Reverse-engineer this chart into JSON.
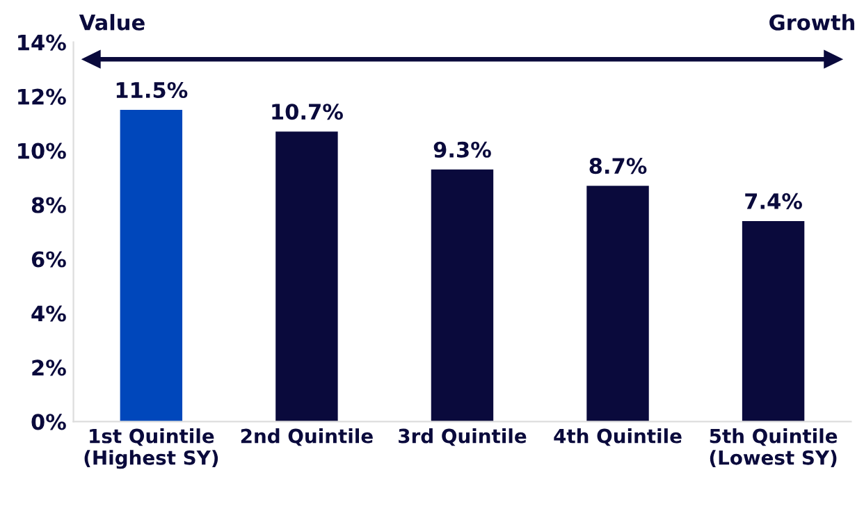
{
  "chart_data": {
    "type": "bar",
    "categories": [
      "1st Quintile\n(Highest SY)",
      "2nd Quintile",
      "3rd Quintile",
      "4th Quintile",
      "5th Quintile\n(Lowest SY)"
    ],
    "values": [
      11.5,
      10.7,
      9.3,
      8.7,
      7.4
    ],
    "colors": [
      "#0047bb",
      "#0a0a3c",
      "#0a0a3c",
      "#0a0a3c",
      "#0a0a3c"
    ],
    "value_labels": [
      "11.5%",
      "10.7%",
      "9.3%",
      "8.7%",
      "7.4%"
    ],
    "ylim": [
      0,
      14
    ],
    "yticks": [
      {
        "value": 0,
        "label": "0%"
      },
      {
        "value": 2,
        "label": "2%"
      },
      {
        "value": 4,
        "label": "4%"
      },
      {
        "value": 6,
        "label": "6%"
      },
      {
        "value": 8,
        "label": "8%"
      },
      {
        "value": 10,
        "label": "10%"
      },
      {
        "value": 12,
        "label": "12%"
      },
      {
        "value": 14,
        "label": "14%"
      }
    ],
    "annotations": [
      "Value",
      "Growth"
    ],
    "grid": false,
    "legend": false
  }
}
